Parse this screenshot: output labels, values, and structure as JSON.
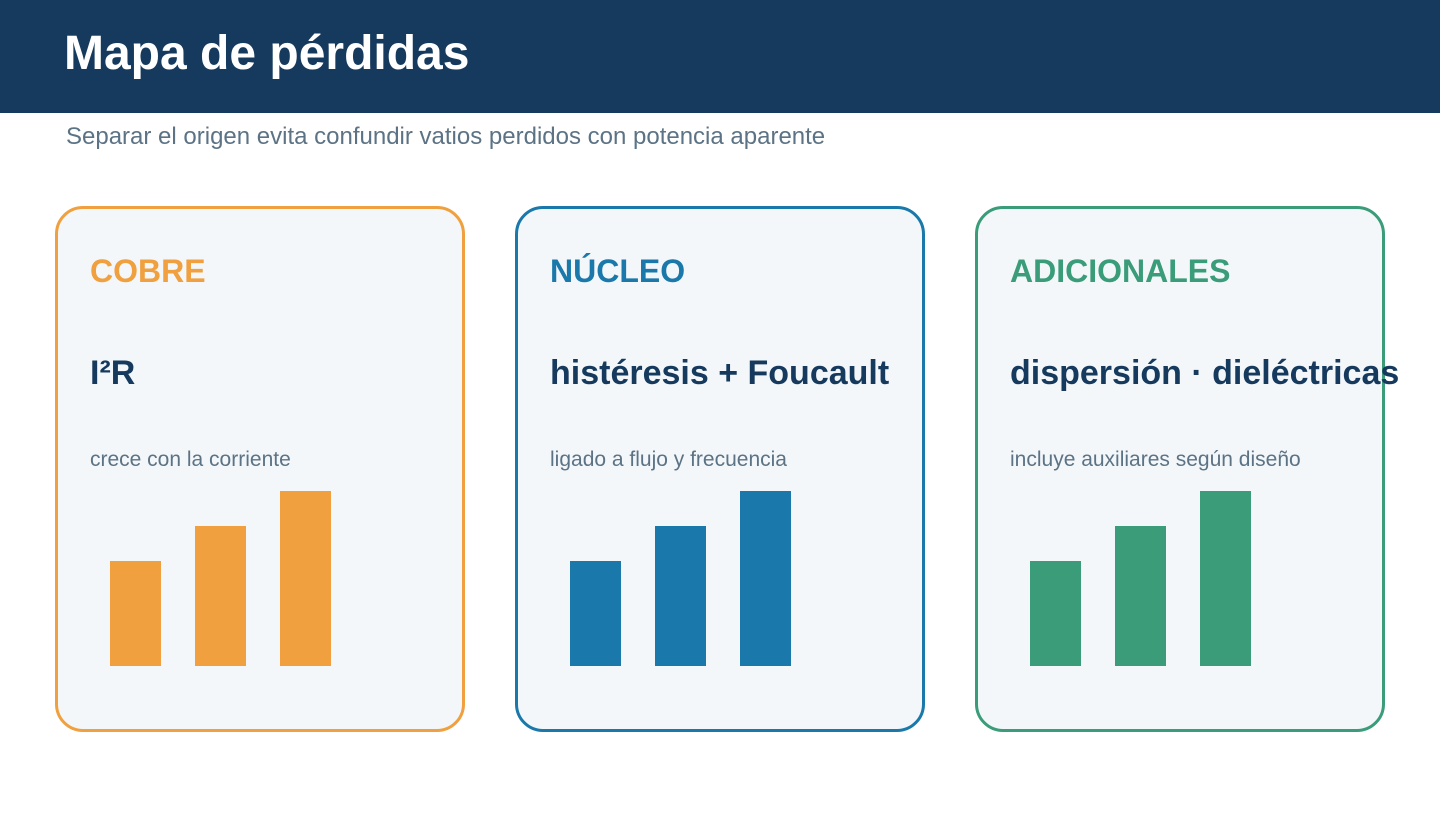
{
  "header": {
    "title": "Mapa de pérdidas",
    "subtitle": "Separar el origen evita confundir vatios perdidos con potencia aparente"
  },
  "cards": [
    {
      "heading": "COBRE",
      "formula": "I²R",
      "note": "crece con la corriente",
      "color": "#f0a03e",
      "bar_levels": [
        0.6,
        0.8,
        1.0
      ]
    },
    {
      "heading": "NÚCLEO",
      "formula": "histéresis + Foucault",
      "note": "ligado a flujo y frecuencia",
      "color": "#1a78aa",
      "bar_levels": [
        0.6,
        0.8,
        1.0
      ]
    },
    {
      "heading": "ADICIONALES",
      "formula": "dispersión · dieléctricas",
      "note": "incluye auxiliares según diseño",
      "color": "#3a9c78",
      "bar_levels": [
        0.6,
        0.8,
        1.0
      ]
    }
  ]
}
